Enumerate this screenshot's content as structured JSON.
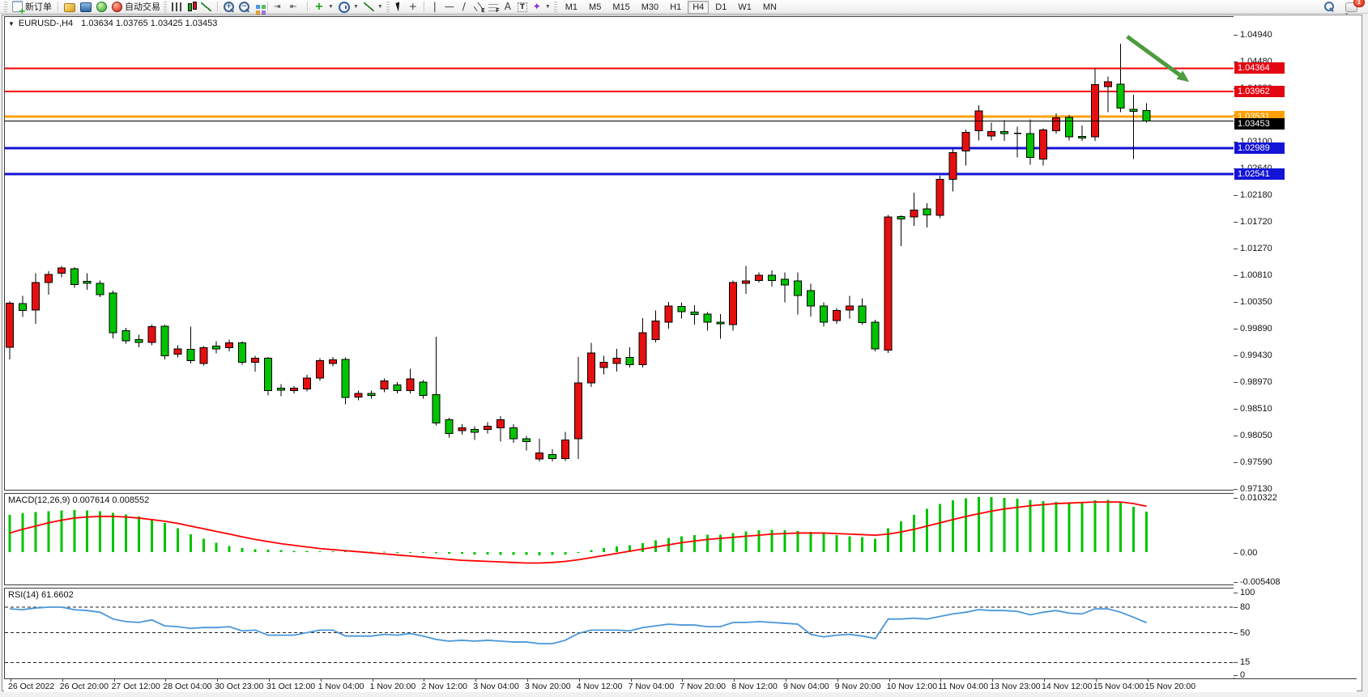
{
  "toolbar": {
    "new_order_label": "新订单",
    "auto_trading_label": "自动交易",
    "timeframes": [
      "M1",
      "M5",
      "M15",
      "M30",
      "H1",
      "H4",
      "D1",
      "W1",
      "MN"
    ],
    "active_timeframe": "H4",
    "notification_count": "1"
  },
  "chart": {
    "symbol_period": "EURUSD-,H4",
    "ohlc_text": "1.03634  1.03765  1.03425  1.03453"
  },
  "indicators": {
    "macd_label": "MACD(12,26,9) 0.007614 0.008552",
    "rsi_label": "RSI(14) 61.6602"
  },
  "chart_data": {
    "type": "candlestick",
    "title": "EURUSD- H4",
    "current_ohlc": {
      "open": 1.03634,
      "high": 1.03765,
      "low": 1.03425,
      "close": 1.03453
    },
    "colors": {
      "bull": "#e60f0f",
      "bear": "#00c400",
      "outline": "#000000",
      "macd_hist": "#00c400",
      "macd_signal": "#ff0000",
      "rsi_line": "#4a97d8",
      "arrow": "#4e9b40",
      "badge_red": "#e30613",
      "badge_orange": "#ffa000",
      "badge_blue": "#1414d6",
      "badge_black": "#000000"
    },
    "y_axis": {
      "max": 1.0494,
      "min": 0.9713,
      "tick_step": 0.0046,
      "ticks": [
        "1.04940",
        "1.04480",
        "1.04020",
        "1.03560",
        "1.03100",
        "1.02640",
        "1.02180",
        "1.01720",
        "1.01270",
        "1.00810",
        "1.00350",
        "0.99890",
        "0.99430",
        "0.98970",
        "0.98510",
        "0.98050",
        "0.97590",
        "0.97130"
      ]
    },
    "x_axis": {
      "candles_per_label": 4,
      "labels": [
        "26 Oct 2022",
        "26 Oct 20:00",
        "27 Oct 12:00",
        "28 Oct 04:00",
        "30 Oct 23:00",
        "31 Oct 12:00",
        "1 Nov 04:00",
        "1 Nov 20:00",
        "2 Nov 12:00",
        "3 Nov 04:00",
        "3 Nov 20:00",
        "4 Nov 12:00",
        "7 Nov 04:00",
        "7 Nov 20:00",
        "8 Nov 12:00",
        "9 Nov 04:00",
        "9 Nov 20:00",
        "10 Nov 12:00",
        "11 Nov 04:00",
        "13 Nov 23:00",
        "14 Nov 12:00",
        "15 Nov 04:00",
        "15 Nov 20:00"
      ]
    },
    "hlines": [
      {
        "price": 1.04364,
        "color": "#f40000",
        "width": 2,
        "badge": "1.04364",
        "badge_color": "#e30613"
      },
      {
        "price": 1.03962,
        "color": "#f40000",
        "width": 2,
        "badge": "1.03962",
        "badge_color": "#e30613"
      },
      {
        "price": 1.03531,
        "color": "#ffa000",
        "width": 3,
        "badge": "1.03531",
        "badge_color": "#ffa000"
      },
      {
        "price": 1.02989,
        "color": "#1414d6",
        "width": 3,
        "badge": "1.02989",
        "badge_color": "#1414d6"
      },
      {
        "price": 1.02541,
        "color": "#1414d6",
        "width": 3,
        "badge": "1.02541",
        "badge_color": "#1414d6"
      }
    ],
    "current_price": {
      "value": 1.03453,
      "badge": "1.03453",
      "badge_color": "#000000"
    },
    "arrow_annotation": {
      "from_index": 86.5,
      "from_price": 1.0491,
      "to_index": 91.3,
      "to_price": 1.0413,
      "color": "#4e9b40"
    },
    "candles": [
      [
        0.9956,
        1.0035,
        0.9935,
        1.0032
      ],
      [
        1.0031,
        1.0044,
        1.0008,
        1.0019
      ],
      [
        1.002,
        1.0083,
        0.9996,
        1.0067
      ],
      [
        1.0067,
        1.0087,
        1.0046,
        1.0081
      ],
      [
        1.0083,
        1.0096,
        1.0076,
        1.0092
      ],
      [
        1.0091,
        1.0094,
        1.0058,
        1.0064
      ],
      [
        1.0069,
        1.0083,
        1.0055,
        1.0066
      ],
      [
        1.0066,
        1.0071,
        1.0042,
        1.0046
      ],
      [
        1.0049,
        1.0053,
        0.9971,
        0.9981
      ],
      [
        0.9984,
        0.9989,
        0.9962,
        0.9967
      ],
      [
        0.9969,
        0.9977,
        0.9956,
        0.9964
      ],
      [
        0.9964,
        0.9995,
        0.9959,
        0.9991
      ],
      [
        0.9992,
        0.9995,
        0.9935,
        0.9941
      ],
      [
        0.9944,
        0.9959,
        0.9938,
        0.9953
      ],
      [
        0.9952,
        0.9991,
        0.9928,
        0.9933
      ],
      [
        0.9928,
        0.9958,
        0.9924,
        0.9955
      ],
      [
        0.9958,
        0.9966,
        0.9945,
        0.9953
      ],
      [
        0.9955,
        0.9969,
        0.9949,
        0.9963
      ],
      [
        0.9963,
        0.9966,
        0.9926,
        0.993
      ],
      [
        0.993,
        0.9941,
        0.9914,
        0.9937
      ],
      [
        0.9937,
        0.9939,
        0.9873,
        0.9881
      ],
      [
        0.9885,
        0.9892,
        0.9871,
        0.9882
      ],
      [
        0.9881,
        0.9889,
        0.9876,
        0.9885
      ],
      [
        0.9884,
        0.9908,
        0.988,
        0.9903
      ],
      [
        0.9903,
        0.9937,
        0.9898,
        0.9933
      ],
      [
        0.9928,
        0.9939,
        0.9923,
        0.9934
      ],
      [
        0.9935,
        0.9938,
        0.9857,
        0.9869
      ],
      [
        0.987,
        0.9881,
        0.9864,
        0.9876
      ],
      [
        0.9876,
        0.9881,
        0.9867,
        0.9873
      ],
      [
        0.9884,
        0.9902,
        0.9878,
        0.9898
      ],
      [
        0.9891,
        0.9896,
        0.9876,
        0.9881
      ],
      [
        0.9881,
        0.9919,
        0.9876,
        0.9901
      ],
      [
        0.9896,
        0.9899,
        0.9867,
        0.9873
      ],
      [
        0.9874,
        0.9974,
        0.9821,
        0.9825
      ],
      [
        0.9831,
        0.9834,
        0.98,
        0.9807
      ],
      [
        0.9812,
        0.9823,
        0.9805,
        0.9817
      ],
      [
        0.9814,
        0.982,
        0.9796,
        0.9809
      ],
      [
        0.9814,
        0.9827,
        0.9807,
        0.982
      ],
      [
        0.9817,
        0.9837,
        0.9793,
        0.9831
      ],
      [
        0.9817,
        0.9823,
        0.9791,
        0.9798
      ],
      [
        0.9798,
        0.9803,
        0.9778,
        0.9793
      ],
      [
        0.9763,
        0.9798,
        0.9759,
        0.9774
      ],
      [
        0.9771,
        0.978,
        0.9759,
        0.9764
      ],
      [
        0.9764,
        0.981,
        0.976,
        0.9796
      ],
      [
        0.9798,
        0.9939,
        0.9763,
        0.9894
      ],
      [
        0.9894,
        0.9963,
        0.9887,
        0.9946
      ],
      [
        0.9921,
        0.9941,
        0.9909,
        0.993
      ],
      [
        0.9928,
        0.9953,
        0.9914,
        0.9937
      ],
      [
        0.9938,
        0.9956,
        0.9921,
        0.9926
      ],
      [
        0.9926,
        1.0006,
        0.9921,
        0.9981
      ],
      [
        0.9969,
        1.0019,
        0.9964,
        1.0001
      ],
      [
        0.9999,
        1.0034,
        0.9988,
        1.0027
      ],
      [
        1.0026,
        1.0033,
        1.0005,
        1.0017
      ],
      [
        1.0016,
        1.0028,
        0.9995,
        1.0012
      ],
      [
        1.0013,
        1.0016,
        0.9984,
        0.9999
      ],
      [
        0.9999,
        1.0013,
        0.997,
        0.9996
      ],
      [
        0.9995,
        1.0071,
        0.9984,
        1.0067
      ],
      [
        1.0066,
        1.0096,
        1.0048,
        1.007
      ],
      [
        1.0071,
        1.0085,
        1.0067,
        1.008
      ],
      [
        1.008,
        1.0088,
        1.006,
        1.0071
      ],
      [
        1.0073,
        1.0085,
        1.0033,
        1.0063
      ],
      [
        1.007,
        1.0085,
        1.0012,
        1.0045
      ],
      [
        1.0053,
        1.0065,
        1.0009,
        1.0027
      ],
      [
        1.0027,
        1.0033,
        0.9991,
        0.9999
      ],
      [
        1.0002,
        1.0023,
        0.9996,
        1.0019
      ],
      [
        1.002,
        1.0044,
        1.0005,
        1.0027
      ],
      [
        1.0027,
        1.004,
        0.9995,
        0.9998
      ],
      [
        0.9999,
        1.0003,
        0.9949,
        0.9953
      ],
      [
        0.9951,
        1.0184,
        0.9946,
        1.018
      ],
      [
        1.0181,
        1.0183,
        1.013,
        1.0177
      ],
      [
        1.018,
        1.0222,
        1.0165,
        1.0192
      ],
      [
        1.0194,
        1.0204,
        1.0162,
        1.0184
      ],
      [
        1.0183,
        1.0251,
        1.0178,
        1.0245
      ],
      [
        1.0245,
        1.0297,
        1.0224,
        1.0291
      ],
      [
        1.0294,
        1.0331,
        1.0269,
        1.0326
      ],
      [
        1.0329,
        1.0373,
        1.0312,
        1.0363
      ],
      [
        1.032,
        1.0343,
        1.0312,
        1.0327
      ],
      [
        1.0327,
        1.0347,
        1.0311,
        1.0324
      ],
      [
        1.0326,
        1.0336,
        1.0283,
        1.0324
      ],
      [
        1.0324,
        1.0348,
        1.027,
        1.0283
      ],
      [
        1.028,
        1.0333,
        1.0269,
        1.033
      ],
      [
        1.0329,
        1.0359,
        1.0324,
        1.0351
      ],
      [
        1.0352,
        1.0356,
        1.0312,
        1.0318
      ],
      [
        1.0319,
        1.0338,
        1.0311,
        1.0316
      ],
      [
        1.0318,
        1.0437,
        1.0311,
        1.0408
      ],
      [
        1.0405,
        1.0422,
        1.0361,
        1.0413
      ],
      [
        1.0409,
        1.0479,
        1.0361,
        1.0368
      ],
      [
        1.0366,
        1.0391,
        1.028,
        1.0362
      ],
      [
        1.03634,
        1.03765,
        1.03425,
        1.03453
      ]
    ],
    "macd": {
      "params": "12,26,9",
      "value_main": 0.007614,
      "value_signal": 0.008552,
      "axis_ticks": [
        "0.010322",
        "0.00",
        "-0.005408"
      ],
      "max": 0.010322,
      "min": -0.005408,
      "hist": [
        0.007,
        0.0073,
        0.0075,
        0.0077,
        0.0078,
        0.0079,
        0.0078,
        0.0077,
        0.0074,
        0.0071,
        0.0067,
        0.0062,
        0.0055,
        0.0045,
        0.0034,
        0.0025,
        0.0018,
        0.0012,
        0.0008,
        0.0006,
        0.0005,
        0.0004,
        0.0003,
        0.0003,
        0.0002,
        0.0002,
        0.0002,
        0.0001,
        0.0001,
        0.0001,
        0.0,
        0.0,
        -0.0001,
        -0.0002,
        -0.0003,
        -0.0003,
        -0.0004,
        -0.0004,
        -0.0005,
        -0.0005,
        -0.0005,
        -0.0006,
        -0.0005,
        -0.0004,
        -0.0001,
        0.0004,
        0.0008,
        0.0011,
        0.0013,
        0.0017,
        0.0022,
        0.0027,
        0.003,
        0.0032,
        0.0033,
        0.0033,
        0.0036,
        0.0039,
        0.0041,
        0.0042,
        0.0041,
        0.004,
        0.0038,
        0.0035,
        0.0032,
        0.003,
        0.0028,
        0.0025,
        0.0045,
        0.0058,
        0.007,
        0.0081,
        0.009,
        0.0097,
        0.0101,
        0.0103,
        0.0103,
        0.0102,
        0.01,
        0.0098,
        0.0096,
        0.0094,
        0.0093,
        0.0094,
        0.0097,
        0.0098,
        0.0093,
        0.0085,
        0.0076
      ],
      "signal": [
        0.0036,
        0.0043,
        0.0049,
        0.0055,
        0.006,
        0.0064,
        0.0066,
        0.0067,
        0.0067,
        0.0066,
        0.0064,
        0.0061,
        0.0058,
        0.0054,
        0.0049,
        0.0044,
        0.0039,
        0.0034,
        0.0029,
        0.0024,
        0.002,
        0.0016,
        0.0013,
        0.001,
        0.0007,
        0.0005,
        0.0003,
        0.0001,
        -0.0001,
        -0.0003,
        -0.0005,
        -0.0007,
        -0.0009,
        -0.0011,
        -0.0013,
        -0.0015,
        -0.0016,
        -0.0017,
        -0.0018,
        -0.0019,
        -0.002,
        -0.002,
        -0.0019,
        -0.0017,
        -0.0014,
        -0.001,
        -0.0006,
        -0.0002,
        0.0002,
        0.0006,
        0.001,
        0.0014,
        0.0018,
        0.0021,
        0.0024,
        0.0026,
        0.0028,
        0.003,
        0.0032,
        0.0034,
        0.0035,
        0.0036,
        0.0036,
        0.0036,
        0.0035,
        0.0034,
        0.0033,
        0.0032,
        0.0034,
        0.0038,
        0.0043,
        0.0049,
        0.0055,
        0.0061,
        0.0067,
        0.0072,
        0.0077,
        0.0081,
        0.0084,
        0.0087,
        0.0089,
        0.0091,
        0.0092,
        0.0093,
        0.0094,
        0.0094,
        0.0094,
        0.0091,
        0.0086
      ]
    },
    "rsi": {
      "period": 14,
      "value": 61.6602,
      "levels": [
        80,
        50,
        15
      ],
      "axis_ticks": [
        "100",
        "80",
        "50",
        "15",
        "0"
      ],
      "range": [
        0,
        100
      ],
      "values": [
        78,
        77,
        79,
        80,
        80,
        77,
        76,
        74,
        66,
        63,
        62,
        65,
        58,
        57,
        55,
        56,
        56,
        57,
        52,
        53,
        47,
        47,
        47,
        50,
        53,
        53,
        46,
        46,
        46,
        48,
        47,
        49,
        46,
        42,
        40,
        41,
        40,
        41,
        40,
        39,
        39,
        37,
        37,
        41,
        49,
        53,
        53,
        53,
        52,
        56,
        58,
        60,
        59,
        59,
        57,
        57,
        62,
        62,
        63,
        62,
        61,
        60,
        48,
        45,
        47,
        48,
        46,
        43,
        66,
        66,
        67,
        66,
        69,
        72,
        74,
        77,
        76,
        76,
        75,
        71,
        74,
        76,
        73,
        72,
        78,
        78,
        74,
        68,
        61.66
      ]
    }
  }
}
